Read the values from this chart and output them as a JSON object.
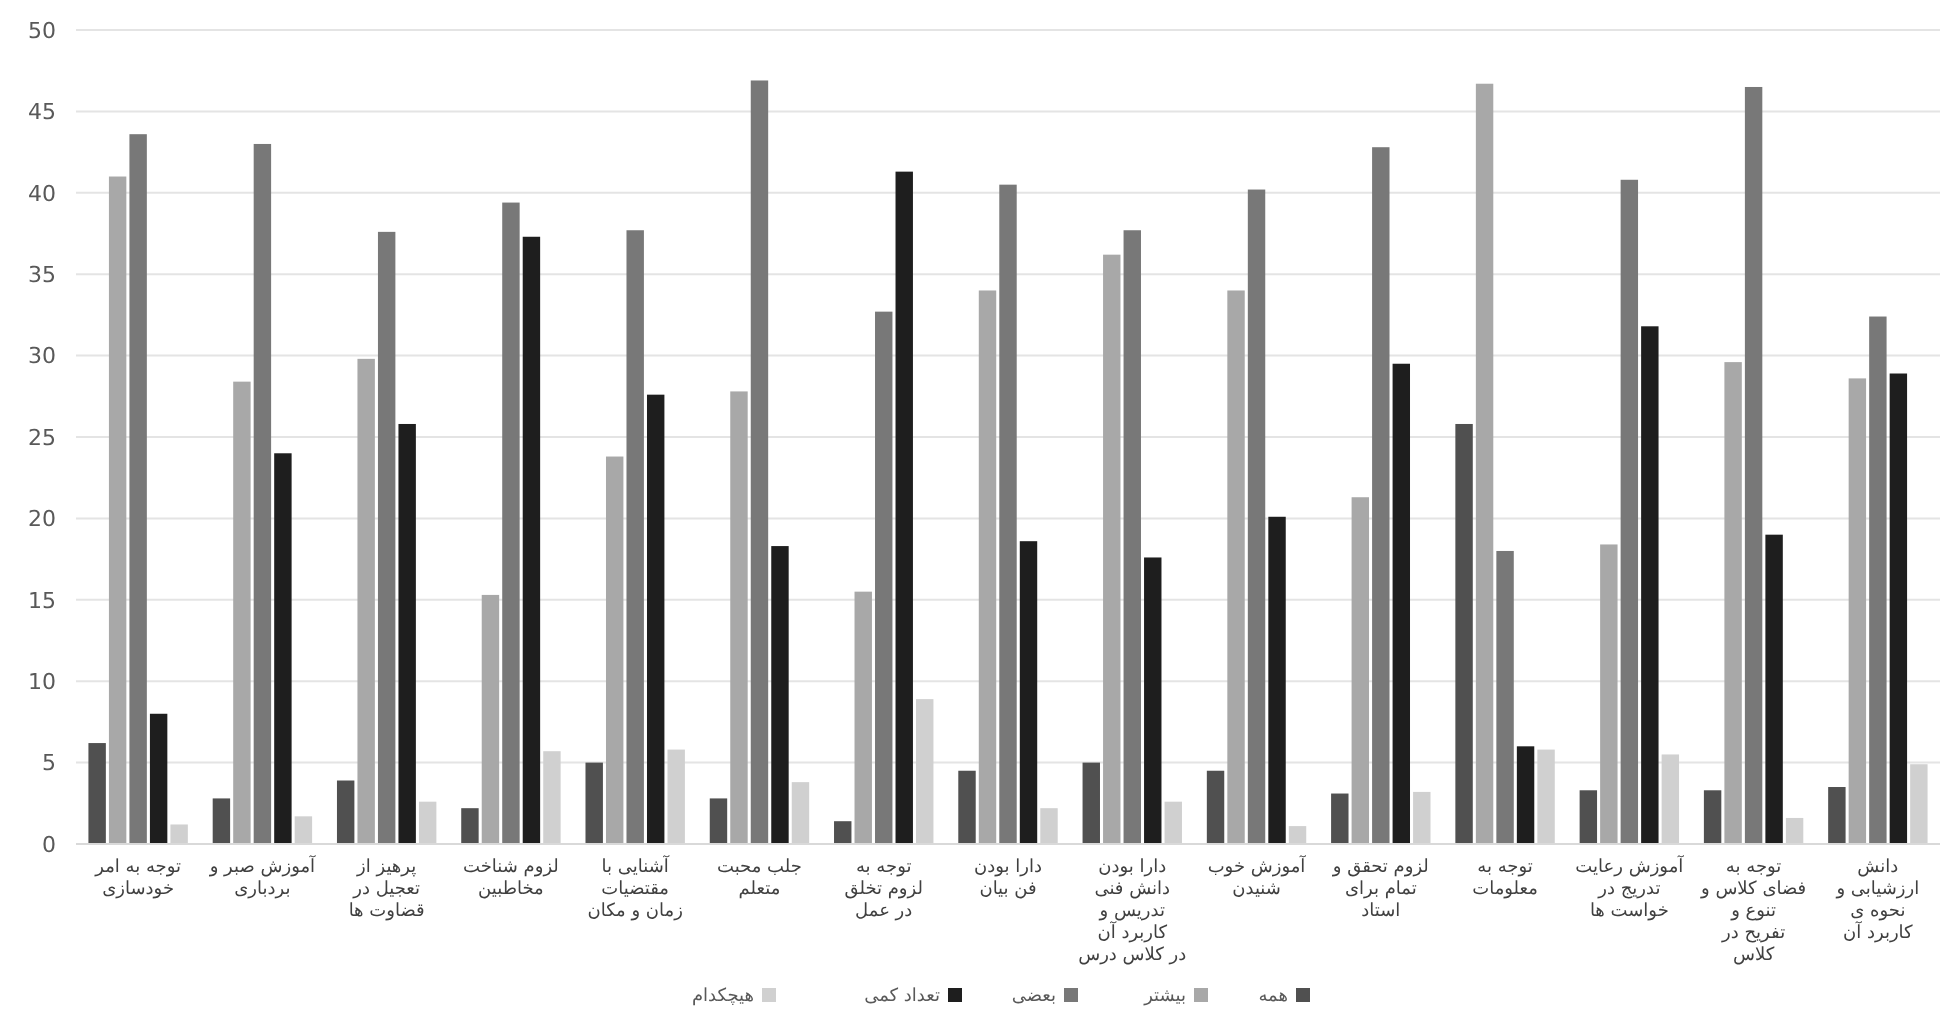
{
  "chart_data": {
    "type": "bar",
    "categories": [
      "توجه به امر خودسازی",
      "آموزش صبر و بردباری",
      "پرهیز از تعجیل در قضاوت ها",
      "لزوم شناخت مخاطبین",
      "آشنایی با مقتضیات زمان و مکان",
      "جلب محبت متعلم",
      "توجه به لزوم تخلق در عمل",
      "دارا بودن فن بیان",
      "دارا بودن دانش فنی تدریس و کاربرد آن در کلاس درس",
      "آموزش خوب شنیدن",
      "لزوم تحقق و تمام برای استاد",
      "توجه به معلومات",
      "آموزش رعایت تدریج در خواست ها",
      "توجه به فضای کلاس و تنوع و تفریح در کلاس",
      "دانش ارزشیابی و نحوه ی کاربرد آن"
    ],
    "series": [
      {
        "name": "همه",
        "color": "#505050",
        "values": [
          6.2,
          2.8,
          3.9,
          2.2,
          5,
          2.8,
          1.4,
          4.5,
          5,
          4.5,
          3.1,
          25.8,
          3.3,
          3.3,
          3.5
        ]
      },
      {
        "name": "بیشتر",
        "color": "#a8a8a8",
        "values": [
          41,
          28.4,
          29.8,
          15.3,
          23.8,
          27.8,
          15.5,
          34,
          36.2,
          34,
          21.3,
          46.7,
          18.4,
          29.6,
          28.6
        ]
      },
      {
        "name": "بعضی",
        "color": "#787878",
        "values": [
          43.6,
          43,
          37.6,
          39.4,
          37.7,
          46.9,
          32.7,
          40.5,
          37.7,
          40.2,
          42.8,
          18,
          40.8,
          46.5,
          32.4
        ]
      },
      {
        "name": "تعداد کمی",
        "color": "#1e1e1e",
        "values": [
          8,
          24,
          25.8,
          37.3,
          27.6,
          18.3,
          41.3,
          18.6,
          17.6,
          20.1,
          29.5,
          6,
          31.8,
          19,
          28.9
        ]
      },
      {
        "name": "هیچکدام",
        "color": "#d0d0d0",
        "values": [
          1.2,
          1.7,
          2.6,
          5.7,
          5.8,
          3.8,
          8.9,
          2.2,
          2.6,
          1.1,
          3.2,
          5.8,
          5.5,
          1.6,
          4.9
        ]
      }
    ],
    "ylim": [
      0,
      50
    ],
    "yticks": [
      0,
      5,
      10,
      15,
      20,
      25,
      30,
      35,
      40,
      45,
      50
    ],
    "grid": "y",
    "legend": "bottom"
  }
}
